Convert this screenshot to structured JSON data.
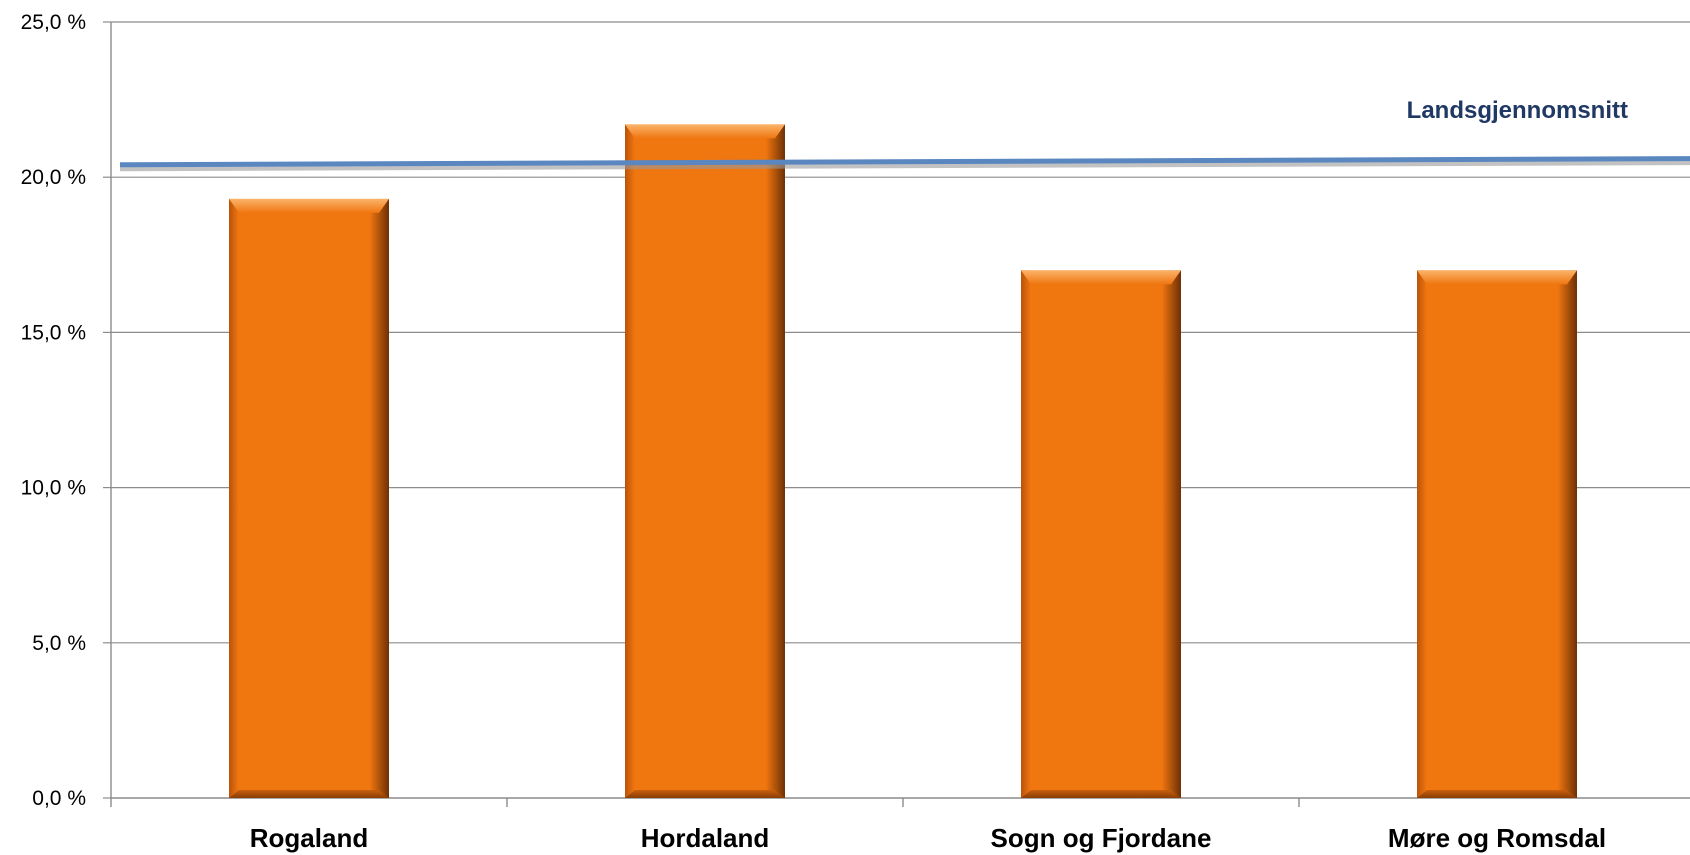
{
  "chart_data": {
    "type": "bar",
    "categories": [
      "Rogaland",
      "Hordaland",
      "Sogn og Fjordane",
      "Møre og Romsdal"
    ],
    "values": [
      19.3,
      21.7,
      17.0,
      17.0
    ],
    "ylim": [
      0,
      25
    ],
    "yticks": [
      0,
      5,
      10,
      15,
      20,
      25
    ],
    "ytick_labels": [
      "0,0 %",
      "5,0 %",
      "10,0 %",
      "15,0 %",
      "20,0 %",
      "25,0 %"
    ],
    "grid": true,
    "reference_line": {
      "label": "Landsgjennomsnitt",
      "y_start": 20.4,
      "y_end": 20.6
    },
    "colors": {
      "bar": "#f07610",
      "bar_light": "#f9a04a",
      "bar_dark": "#7a3606",
      "reference_line": "#5b87c0",
      "reference_label": "#1f3864",
      "grid": "#8c8c8c"
    }
  }
}
